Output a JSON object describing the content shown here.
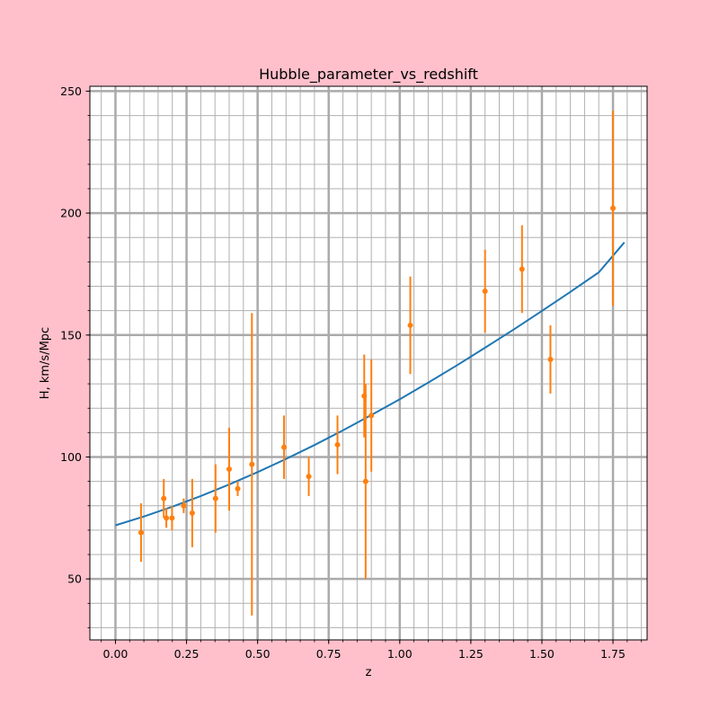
{
  "page": {
    "background": "#ffc0cb"
  },
  "chart_data": {
    "type": "scatter",
    "title": "Hubble_parameter_vs_redshift",
    "xlabel": "z",
    "ylabel": "H, km/s/Mpc",
    "xlim": [
      -0.09,
      1.87
    ],
    "ylim": [
      25,
      252
    ],
    "grid": true,
    "x_ticks": [
      "0.00",
      "0.25",
      "0.50",
      "0.75",
      "1.00",
      "1.25",
      "1.50",
      "1.75"
    ],
    "y_ticks": [
      "50",
      "100",
      "150",
      "200",
      "250"
    ],
    "model_curve": {
      "color": "#1f77b4",
      "x": [
        0.0,
        0.1,
        0.2,
        0.3,
        0.4,
        0.5,
        0.6,
        0.7,
        0.8,
        0.9,
        1.0,
        1.1,
        1.2,
        1.3,
        1.4,
        1.5,
        1.6,
        1.7,
        1.79
      ],
      "values": [
        72.0,
        75.6,
        79.6,
        84.0,
        88.7,
        93.8,
        99.2,
        104.9,
        110.9,
        117.2,
        123.7,
        130.5,
        137.5,
        144.8,
        152.2,
        159.9,
        167.7,
        175.7,
        188.0
      ]
    },
    "observations": {
      "color": "#ff7f0e",
      "x": [
        0.09,
        0.17,
        0.179,
        0.199,
        0.24,
        0.27,
        0.352,
        0.4,
        0.43,
        0.48,
        0.593,
        0.68,
        0.781,
        0.875,
        0.88,
        0.9,
        1.037,
        1.3,
        1.43,
        1.53,
        1.75
      ],
      "values": [
        69,
        83,
        75,
        75,
        80,
        77,
        83,
        95,
        87,
        97,
        104,
        92,
        105,
        125,
        90,
        117,
        154,
        168,
        177,
        140,
        202
      ],
      "errors": [
        12,
        8,
        4,
        5,
        3,
        14,
        14,
        17,
        3,
        62,
        13,
        8,
        12,
        17,
        40,
        23,
        20,
        17,
        18,
        14,
        40
      ]
    }
  }
}
